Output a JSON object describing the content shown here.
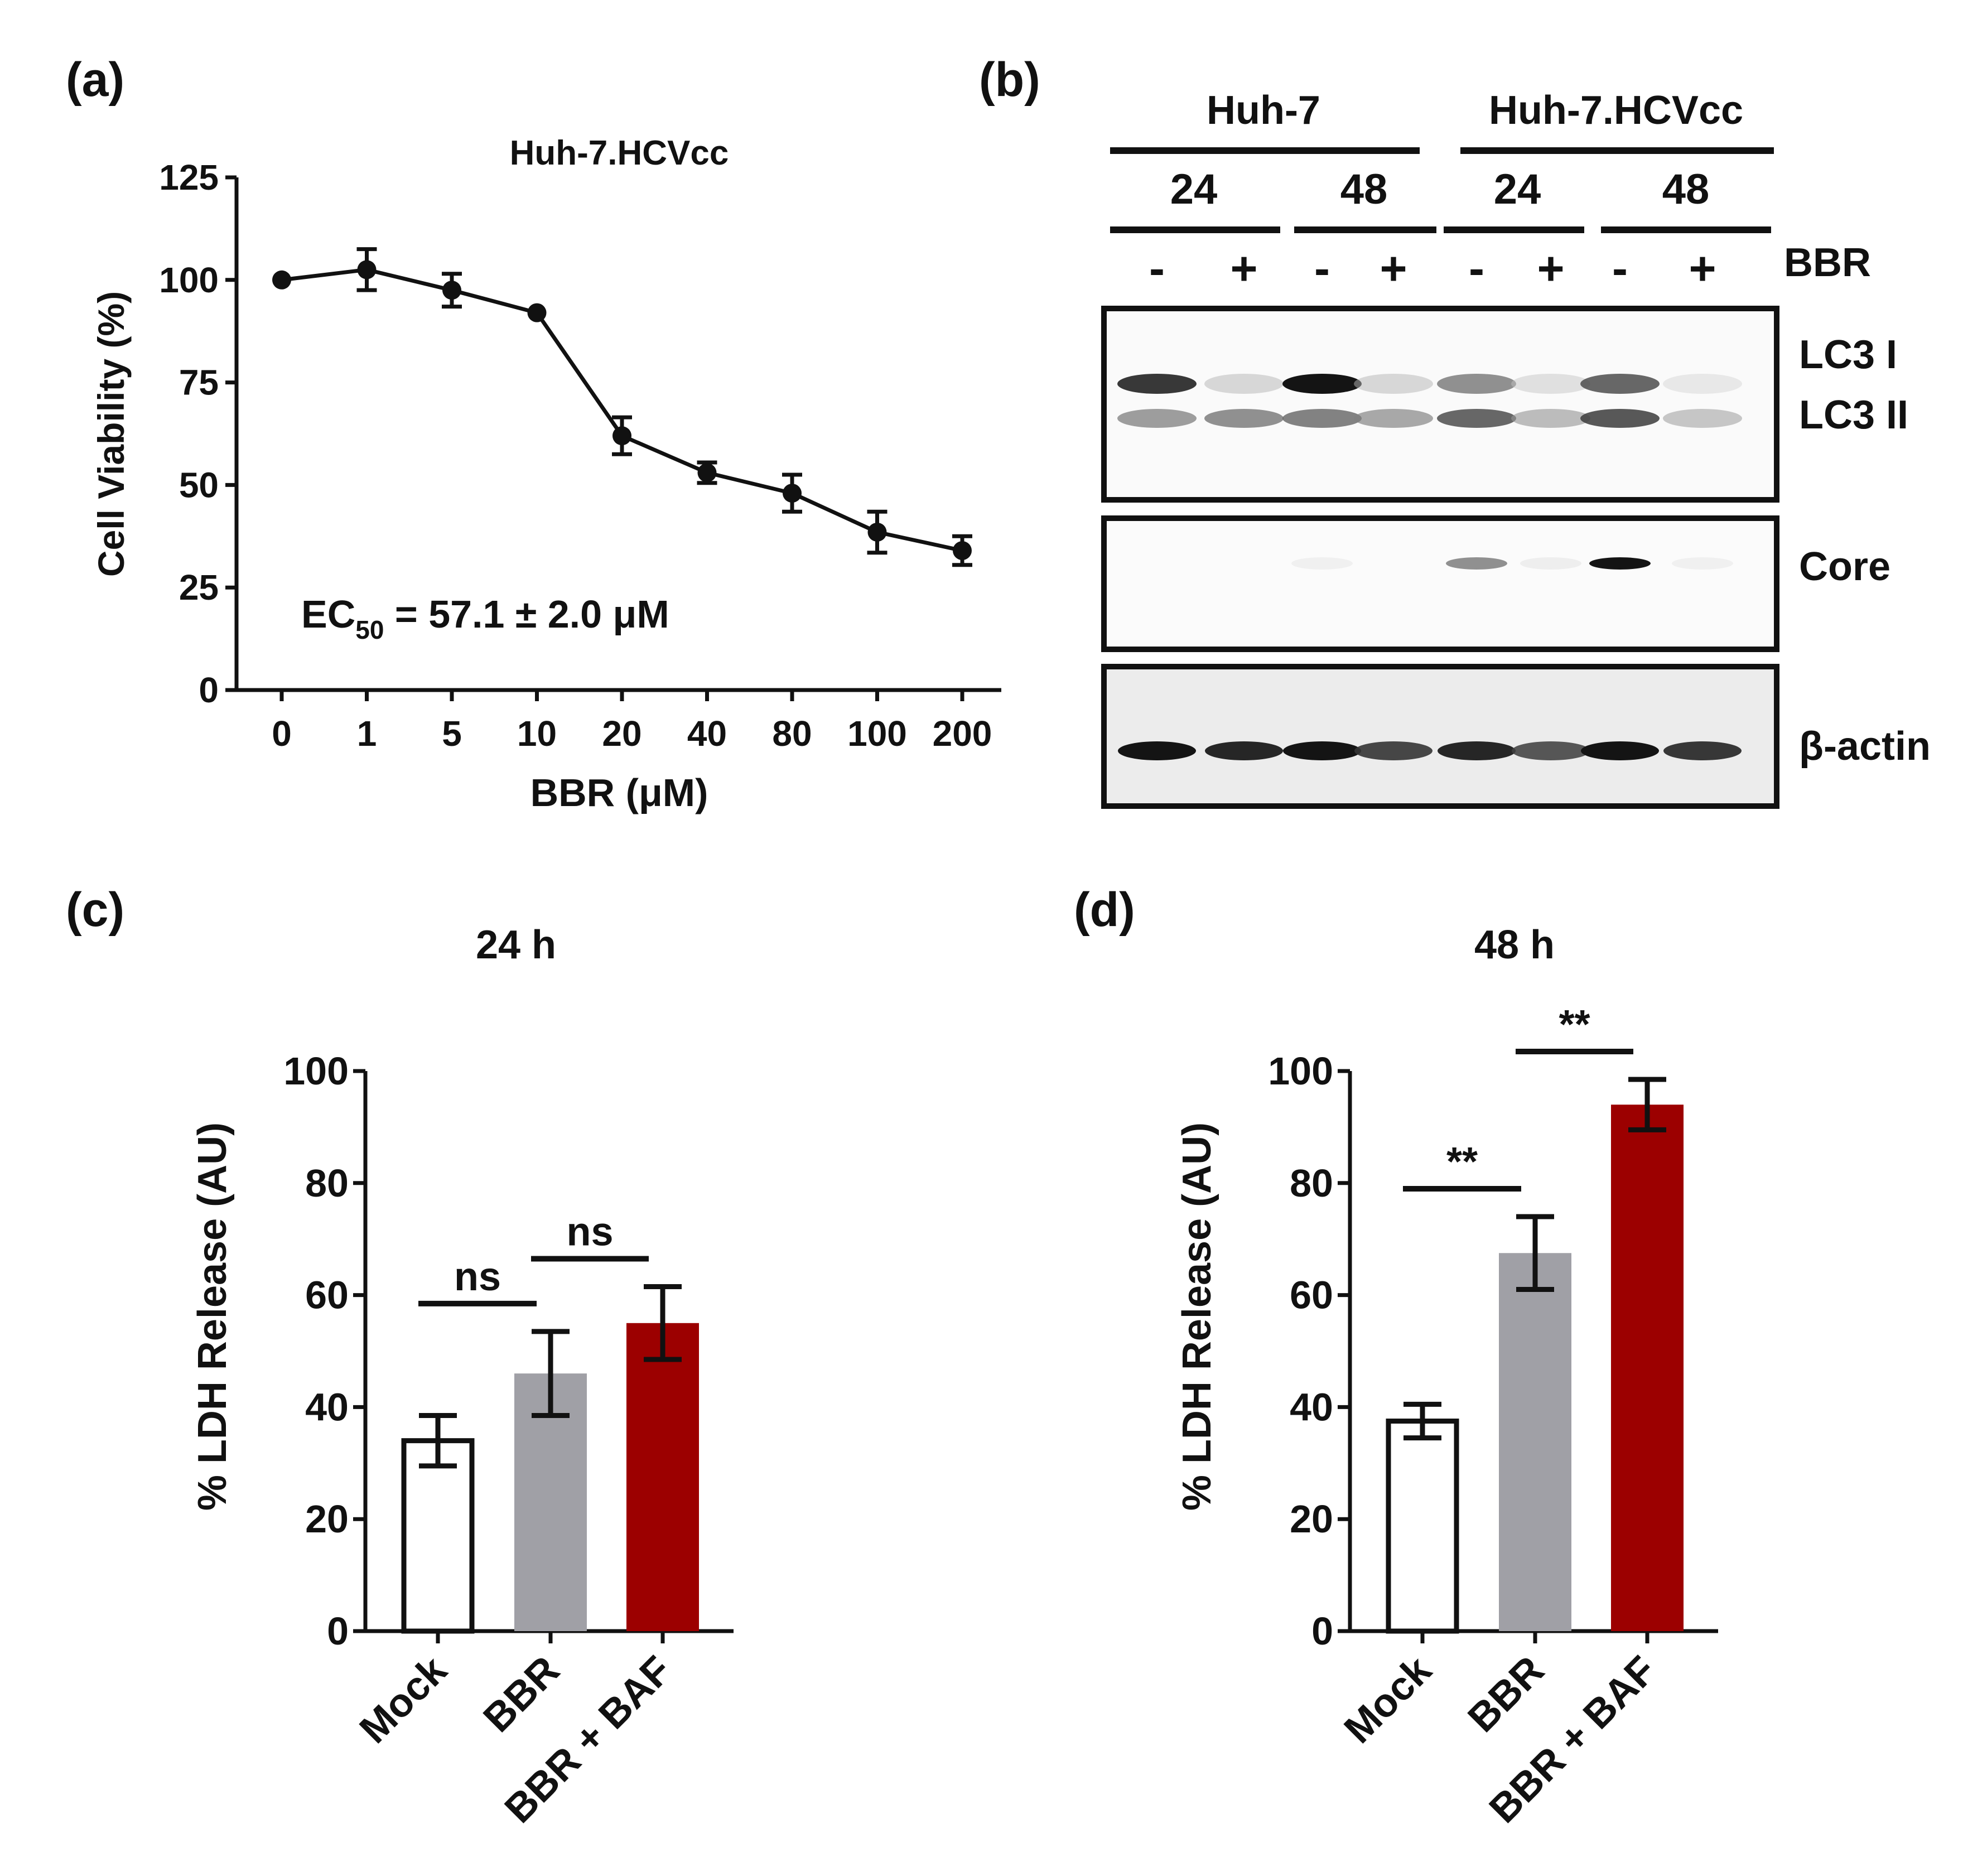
{
  "panels": {
    "a": {
      "label": "(a)"
    },
    "b": {
      "label": "(b)"
    },
    "c": {
      "label": "(c)"
    },
    "d": {
      "label": "(d)"
    }
  },
  "colors": {
    "ink": "#111111",
    "mock": "#ffffff",
    "bbr": "#a0a0a6",
    "bbr_baf": "#9c0000",
    "blot_bg": "#fafafa",
    "actin_bg": "#ececec"
  },
  "chart_data": [
    {
      "id": "a",
      "type": "line",
      "title": "Huh-7.HCVcc",
      "xlabel": "BBR (μM)",
      "ylabel": "Cell Viability (%)",
      "categories": [
        "0",
        "1",
        "5",
        "10",
        "20",
        "40",
        "80",
        "100",
        "200"
      ],
      "values": [
        100,
        102.5,
        97.5,
        92,
        62,
        53,
        48,
        38.5,
        34
      ],
      "errors": [
        0,
        5,
        4,
        0,
        4.5,
        2.5,
        4.5,
        5,
        3.5
      ],
      "yticks": [
        "0",
        "25",
        "50",
        "75",
        "100",
        "125"
      ],
      "ylim": [
        0,
        125
      ],
      "annotation": {
        "prefix": "EC",
        "sub": "50",
        "text": " = 57.1 ± 2.0 μM"
      }
    },
    {
      "id": "c",
      "type": "bar",
      "title": "24 h",
      "ylabel": "% LDH Release (AU)",
      "categories": [
        "Mock",
        "BBR",
        "BBR + BAF"
      ],
      "values": [
        34,
        46,
        55
      ],
      "errors": [
        4.5,
        7.5,
        6.5
      ],
      "yticks": [
        "0",
        "20",
        "40",
        "60",
        "80",
        "100"
      ],
      "ylim": [
        0,
        100
      ],
      "significance": [
        {
          "from": 0,
          "to": 1,
          "label": "ns"
        },
        {
          "from": 1,
          "to": 2,
          "label": "ns"
        }
      ]
    },
    {
      "id": "d",
      "type": "bar",
      "title": "48 h",
      "ylabel": "% LDH Release (AU)",
      "categories": [
        "Mock",
        "BBR",
        "BBR + BAF"
      ],
      "values": [
        37.5,
        67.5,
        94
      ],
      "errors": [
        3,
        6.5,
        4.5
      ],
      "yticks": [
        "0",
        "20",
        "40",
        "60",
        "80",
        "100"
      ],
      "ylim": [
        0,
        100
      ],
      "significance": [
        {
          "from": 0,
          "to": 1,
          "label": "**"
        },
        {
          "from": 1,
          "to": 2,
          "label": "**"
        }
      ]
    }
  ],
  "blot": {
    "groups": [
      "Huh-7",
      "Huh-7.HCVcc"
    ],
    "times": [
      "24",
      "48",
      "24",
      "48"
    ],
    "treatment_label": "BBR",
    "treatments": [
      "-",
      "+",
      "-",
      "+",
      "-",
      "+",
      "-",
      "+"
    ],
    "rows": [
      "LC3 I",
      "LC3 II",
      "Core",
      "β-actin"
    ],
    "intensities": {
      "lc3_1": [
        0.9,
        0.25,
        1.0,
        0.25,
        0.6,
        0.18,
        0.75,
        0.12
      ],
      "lc3_2": [
        0.55,
        0.6,
        0.65,
        0.5,
        0.75,
        0.4,
        0.8,
        0.35
      ],
      "core": [
        0.03,
        0.02,
        0.05,
        0.02,
        0.6,
        0.08,
        1.0,
        0.05
      ],
      "actin": [
        1.0,
        0.95,
        1.0,
        0.85,
        0.95,
        0.8,
        1.0,
        0.9
      ]
    }
  }
}
